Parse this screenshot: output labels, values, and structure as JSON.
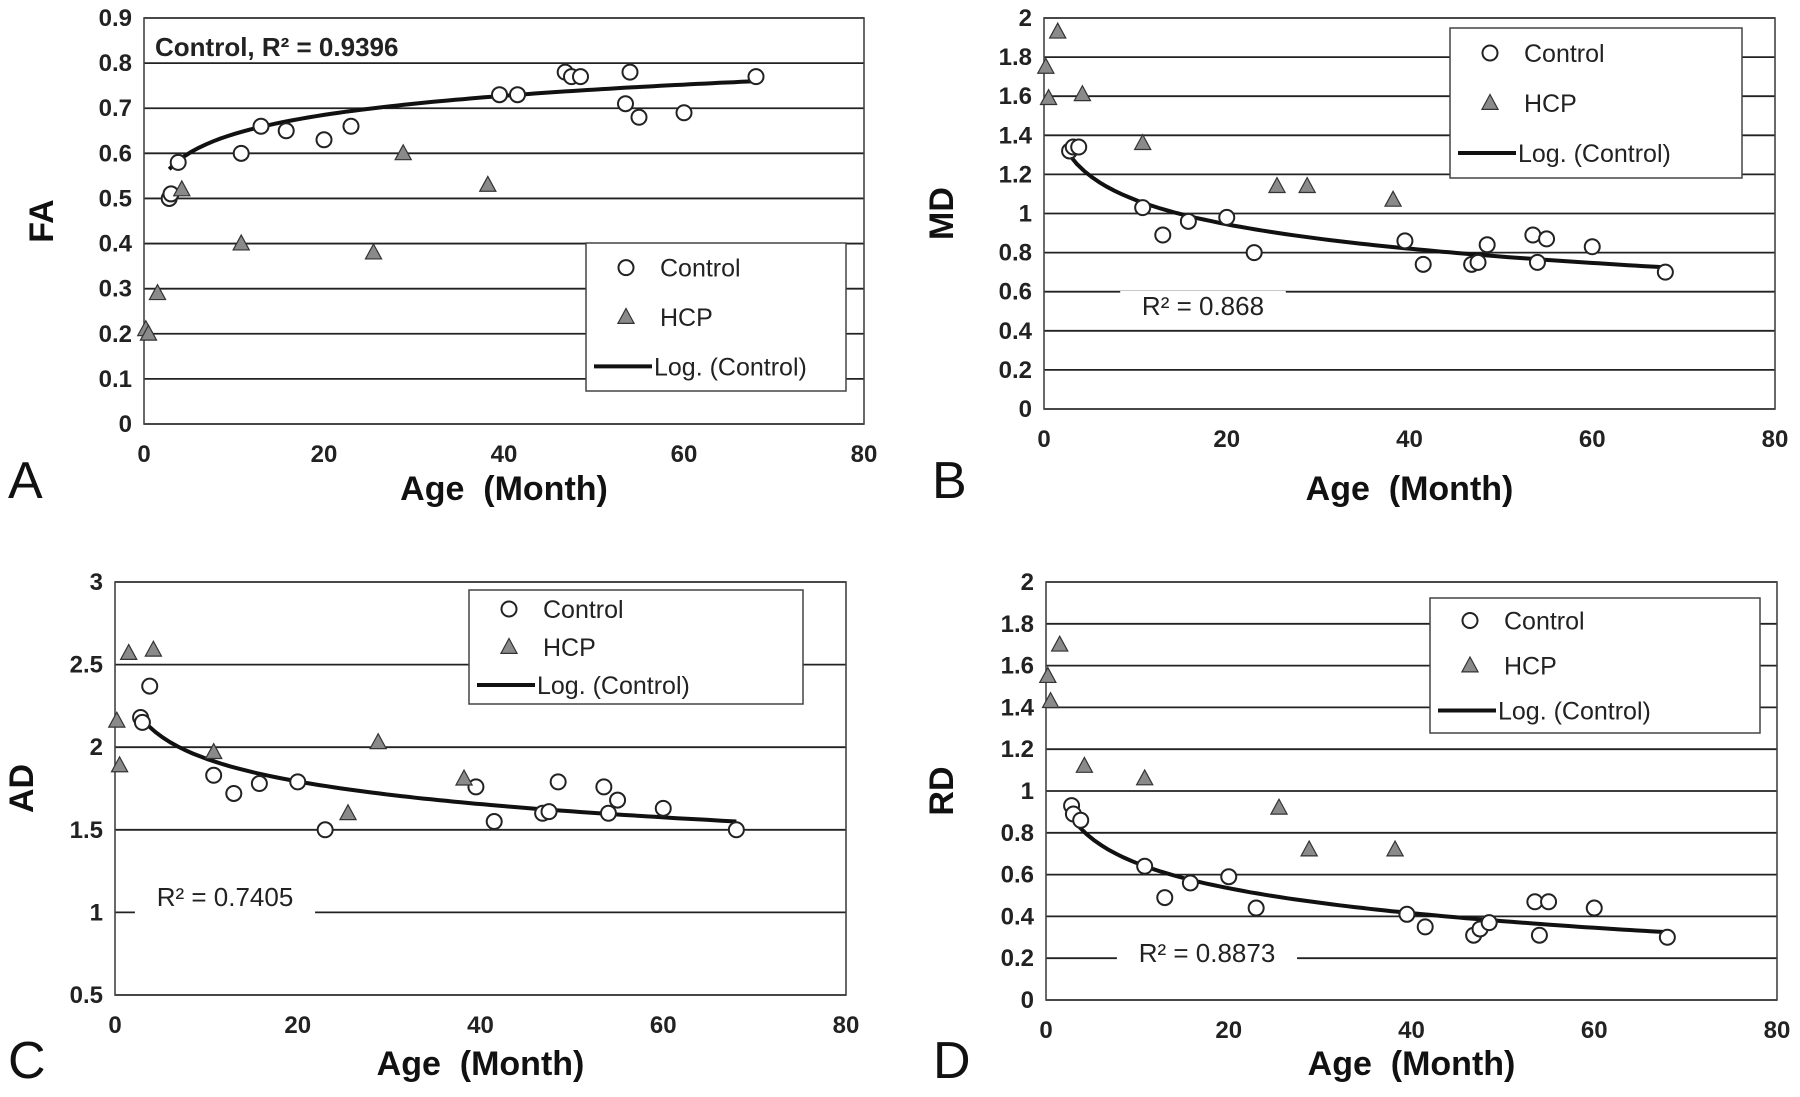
{
  "chart_data": [
    {
      "type": "scatter",
      "panel_label": "A",
      "xlabel": "Age  (Month)",
      "ylabel": "FA",
      "xlim": [
        0,
        80
      ],
      "ylim": [
        0,
        0.9
      ],
      "xticks": [
        "0",
        "20",
        "40",
        "60",
        "80"
      ],
      "yticks": [
        "0",
        "0.1",
        "0.2",
        "0.3",
        "0.4",
        "0.5",
        "0.6",
        "0.7",
        "0.8",
        "0.9"
      ],
      "grid": "horizontal",
      "legend": {
        "position": "lower-right",
        "entries": [
          "Control",
          "HCP",
          "Log. (Control)"
        ]
      },
      "annotation": "Control, R² = 0.9396",
      "fit": {
        "name": "Log. (Control)",
        "type": "logarithmic",
        "a": 0.5018,
        "b": 0.0612,
        "x_range": [
          2.8,
          68
        ]
      },
      "series": [
        {
          "name": "Control",
          "marker": "open-circle",
          "points": [
            [
              2.8,
              0.5
            ],
            [
              3.0,
              0.51
            ],
            [
              3.8,
              0.58
            ],
            [
              10.8,
              0.6
            ],
            [
              13.0,
              0.66
            ],
            [
              15.8,
              0.65
            ],
            [
              20.0,
              0.63
            ],
            [
              23.0,
              0.66
            ],
            [
              39.5,
              0.73
            ],
            [
              41.5,
              0.73
            ],
            [
              46.8,
              0.78
            ],
            [
              47.5,
              0.77
            ],
            [
              48.5,
              0.77
            ],
            [
              53.5,
              0.71
            ],
            [
              54.0,
              0.78
            ],
            [
              55.0,
              0.68
            ],
            [
              60.0,
              0.69
            ],
            [
              68.0,
              0.77
            ]
          ]
        },
        {
          "name": "HCP",
          "marker": "filled-triangle",
          "points": [
            [
              0.2,
              0.21
            ],
            [
              0.5,
              0.2
            ],
            [
              1.5,
              0.29
            ],
            [
              4.2,
              0.52
            ],
            [
              10.8,
              0.4
            ],
            [
              25.5,
              0.38
            ],
            [
              28.8,
              0.6
            ],
            [
              38.2,
              0.53
            ]
          ]
        }
      ]
    },
    {
      "type": "scatter",
      "panel_label": "B",
      "xlabel": "Age  (Month)",
      "ylabel": "MD",
      "xlim": [
        0,
        80
      ],
      "ylim": [
        0,
        2
      ],
      "xticks": [
        "0",
        "20",
        "40",
        "60",
        "80"
      ],
      "yticks": [
        "0",
        "0.2",
        "0.4",
        "0.6",
        "0.8",
        "1",
        "1.2",
        "1.4",
        "1.6",
        "1.8",
        "2"
      ],
      "grid": "horizontal",
      "legend": {
        "position": "top-right",
        "entries": [
          "Control",
          "HCP",
          "Log. (Control)"
        ]
      },
      "annotation": "R² = 0.868",
      "fit": {
        "name": "Log. (Control)",
        "type": "logarithmic",
        "a": 1.484,
        "b": -0.18,
        "x_range": [
          2.8,
          68
        ]
      },
      "series": [
        {
          "name": "Control",
          "marker": "open-circle",
          "points": [
            [
              2.8,
              1.32
            ],
            [
              3.2,
              1.34
            ],
            [
              3.8,
              1.34
            ],
            [
              10.8,
              1.03
            ],
            [
              13.0,
              0.89
            ],
            [
              15.8,
              0.96
            ],
            [
              20.0,
              0.98
            ],
            [
              23.0,
              0.8
            ],
            [
              39.5,
              0.86
            ],
            [
              41.5,
              0.74
            ],
            [
              46.8,
              0.74
            ],
            [
              47.5,
              0.75
            ],
            [
              48.5,
              0.84
            ],
            [
              53.5,
              0.89
            ],
            [
              54.0,
              0.75
            ],
            [
              55.0,
              0.87
            ],
            [
              60.0,
              0.83
            ],
            [
              68.0,
              0.7
            ]
          ]
        },
        {
          "name": "HCP",
          "marker": "filled-triangle",
          "points": [
            [
              0.2,
              1.75
            ],
            [
              0.5,
              1.59
            ],
            [
              1.5,
              1.93
            ],
            [
              4.2,
              1.61
            ],
            [
              10.8,
              1.36
            ],
            [
              25.5,
              1.14
            ],
            [
              28.8,
              1.14
            ],
            [
              38.2,
              1.07
            ]
          ]
        }
      ]
    },
    {
      "type": "scatter",
      "panel_label": "C",
      "xlabel": "Age  (Month)",
      "ylabel": "AD",
      "xlim": [
        0,
        80
      ],
      "ylim": [
        0.5,
        3
      ],
      "xticks": [
        "0",
        "20",
        "40",
        "60",
        "80"
      ],
      "yticks": [
        "0.5",
        "1",
        "1.5",
        "2",
        "2.5",
        "3"
      ],
      "grid": "horizontal",
      "legend": {
        "position": "top-right",
        "entries": [
          "Control",
          "HCP",
          "Log. (Control)"
        ]
      },
      "annotation": "R² = 0.7405",
      "fit": {
        "name": "Log. (Control)",
        "type": "logarithmic",
        "a": 2.386,
        "b": -0.198,
        "x_range": [
          2.8,
          68
        ]
      },
      "series": [
        {
          "name": "Control",
          "marker": "open-circle",
          "points": [
            [
              2.8,
              2.18
            ],
            [
              3.0,
              2.15
            ],
            [
              3.8,
              2.37
            ],
            [
              10.8,
              1.83
            ],
            [
              13.0,
              1.72
            ],
            [
              15.8,
              1.78
            ],
            [
              20.0,
              1.79
            ],
            [
              23.0,
              1.5
            ],
            [
              39.5,
              1.76
            ],
            [
              41.5,
              1.55
            ],
            [
              46.8,
              1.6
            ],
            [
              47.5,
              1.61
            ],
            [
              48.5,
              1.79
            ],
            [
              53.5,
              1.76
            ],
            [
              54.0,
              1.6
            ],
            [
              55.0,
              1.68
            ],
            [
              60.0,
              1.63
            ],
            [
              68.0,
              1.5
            ]
          ]
        },
        {
          "name": "HCP",
          "marker": "filled-triangle",
          "points": [
            [
              0.2,
              2.16
            ],
            [
              0.5,
              1.89
            ],
            [
              1.5,
              2.57
            ],
            [
              4.2,
              2.59
            ],
            [
              10.8,
              1.97
            ],
            [
              25.5,
              1.6
            ],
            [
              28.8,
              2.03
            ],
            [
              38.2,
              1.81
            ]
          ]
        }
      ]
    },
    {
      "type": "scatter",
      "panel_label": "D",
      "xlabel": "Age  (Month)",
      "ylabel": "RD",
      "xlim": [
        0,
        80
      ],
      "ylim": [
        0,
        2
      ],
      "xticks": [
        "0",
        "20",
        "40",
        "60",
        "80"
      ],
      "yticks": [
        "0",
        "0.2",
        "0.4",
        "0.6",
        "0.8",
        "1",
        "1.2",
        "1.4",
        "1.6",
        "1.8",
        "2"
      ],
      "grid": "horizontal",
      "legend": {
        "position": "top-right",
        "entries": [
          "Control",
          "HCP",
          "Log. (Control)"
        ]
      },
      "annotation": "R² = 0.8873",
      "fit": {
        "name": "Log. (Control)",
        "type": "logarithmic",
        "a": 1.05,
        "b": -0.172,
        "x_range": [
          2.8,
          68
        ]
      },
      "series": [
        {
          "name": "Control",
          "marker": "open-circle",
          "points": [
            [
              2.8,
              0.93
            ],
            [
              3.0,
              0.89
            ],
            [
              3.8,
              0.86
            ],
            [
              10.8,
              0.64
            ],
            [
              13.0,
              0.49
            ],
            [
              15.8,
              0.56
            ],
            [
              20.0,
              0.59
            ],
            [
              23.0,
              0.44
            ],
            [
              39.5,
              0.41
            ],
            [
              41.5,
              0.35
            ],
            [
              46.8,
              0.31
            ],
            [
              47.5,
              0.34
            ],
            [
              48.5,
              0.37
            ],
            [
              53.5,
              0.47
            ],
            [
              54.0,
              0.31
            ],
            [
              55.0,
              0.47
            ],
            [
              60.0,
              0.44
            ],
            [
              68.0,
              0.3
            ]
          ]
        },
        {
          "name": "HCP",
          "marker": "filled-triangle",
          "points": [
            [
              0.2,
              1.55
            ],
            [
              0.5,
              1.43
            ],
            [
              1.5,
              1.7
            ],
            [
              4.2,
              1.12
            ],
            [
              10.8,
              1.06
            ],
            [
              25.5,
              0.92
            ],
            [
              28.8,
              0.72
            ],
            [
              38.2,
              0.72
            ]
          ]
        }
      ]
    }
  ]
}
